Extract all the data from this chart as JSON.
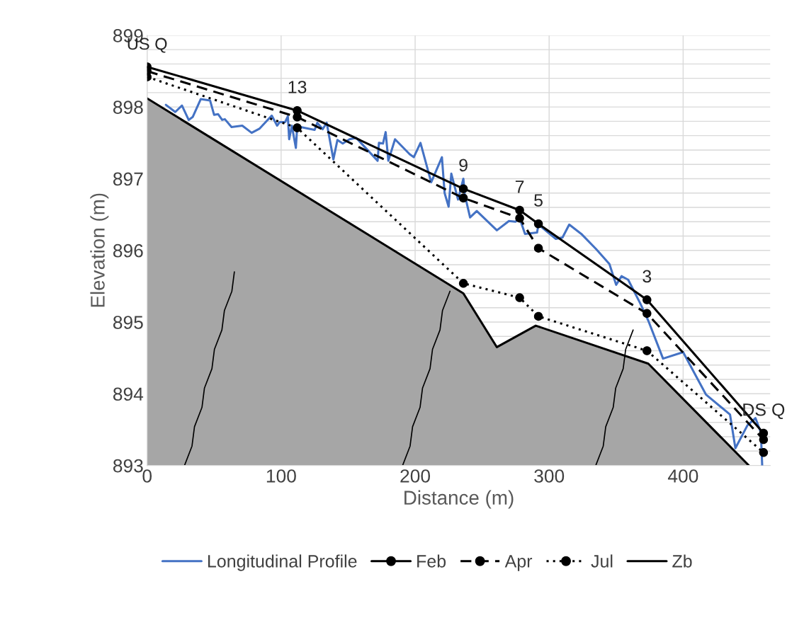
{
  "chart_data": {
    "type": "line",
    "xlabel": "Distance (m)",
    "ylabel": "Elevation (m)",
    "xlim": [
      0,
      465
    ],
    "xticks": [
      0,
      100,
      200,
      300,
      400
    ],
    "ylim": [
      893,
      899
    ],
    "yticks": [
      893,
      {
        "value": 893.2,
        "label": null
      },
      {
        "value": 893.4,
        "label": null
      },
      {
        "value": 893.6,
        "label": null
      },
      {
        "value": 893.8,
        "label": null
      },
      894,
      {
        "value": 894.2,
        "label": null
      },
      {
        "value": 894.4,
        "label": null
      },
      {
        "value": 894.6,
        "label": null
      },
      {
        "value": 894.8,
        "label": null
      },
      895,
      {
        "value": 895.2,
        "label": null
      },
      {
        "value": 895.4,
        "label": null
      },
      {
        "value": 895.6,
        "label": null
      },
      {
        "value": 895.8,
        "label": null
      },
      896,
      {
        "value": 896.2,
        "label": null
      },
      {
        "value": 896.4,
        "label": null
      },
      {
        "value": 896.6,
        "label": null
      },
      {
        "value": 896.8,
        "label": null
      },
      897,
      {
        "value": 897.2,
        "label": null
      },
      {
        "value": 897.4,
        "label": null
      },
      {
        "value": 897.6,
        "label": null
      },
      {
        "value": 897.8,
        "label": null
      },
      898,
      {
        "value": 898.2,
        "label": null
      },
      {
        "value": 898.4,
        "label": null
      },
      {
        "value": 898.6,
        "label": null
      },
      {
        "value": 898.8,
        "label": null
      },
      899
    ],
    "grid": true,
    "legend": "bottom",
    "series": [
      {
        "name": "Longitudinal Profile",
        "color": "#4472c4",
        "marker": "none",
        "line_style": "solid",
        "x": [
          14,
          21,
          26,
          31,
          34,
          40,
          47,
          50,
          53,
          56,
          58,
          63,
          71,
          78,
          84,
          93,
          97,
          99,
          103,
          105,
          106,
          108,
          111,
          112,
          125,
          127,
          131,
          134,
          139,
          142,
          146,
          151,
          156,
          162,
          172,
          173,
          176,
          178,
          180,
          185,
          196,
          199,
          204,
          212,
          220,
          222,
          225,
          227,
          232,
          236,
          237,
          241,
          246,
          261,
          270,
          275,
          278,
          282,
          291,
          292,
          305,
          310,
          315,
          324,
          335,
          345,
          350,
          354,
          359,
          368,
          374,
          385,
          400,
          417,
          435,
          439,
          448,
          454,
          458,
          459
        ],
        "values": [
          898.03,
          897.93,
          898.02,
          897.82,
          897.86,
          898.11,
          898.09,
          897.89,
          897.9,
          897.82,
          897.83,
          897.72,
          897.74,
          897.64,
          897.7,
          897.88,
          897.74,
          897.79,
          897.79,
          897.87,
          897.55,
          897.74,
          897.43,
          897.73,
          897.68,
          897.78,
          897.69,
          897.78,
          897.27,
          897.54,
          897.49,
          897.55,
          897.57,
          897.45,
          897.25,
          897.5,
          897.49,
          897.65,
          897.25,
          897.55,
          897.34,
          897.3,
          897.5,
          896.95,
          897.3,
          896.8,
          896.61,
          897.07,
          896.71,
          897.0,
          896.78,
          896.46,
          896.55,
          896.28,
          896.41,
          896.4,
          896.45,
          896.23,
          896.25,
          896.36,
          896.16,
          896.18,
          896.36,
          896.23,
          896.02,
          895.81,
          895.52,
          895.64,
          895.59,
          895.26,
          895.02,
          894.49,
          894.58,
          893.99,
          893.71,
          893.24,
          893.56,
          893.66,
          893.46,
          893.0
        ]
      },
      {
        "name": "Feb",
        "color": "#000000",
        "marker": "circle",
        "line_style": "solid",
        "x": [
          0,
          112,
          236,
          278,
          292,
          373,
          460
        ],
        "values": [
          898.56,
          897.95,
          896.86,
          896.56,
          896.37,
          895.31,
          893.45
        ]
      },
      {
        "name": "Apr",
        "color": "#000000",
        "marker": "circle",
        "line_style": "dashed",
        "x": [
          0,
          112,
          236,
          278,
          292,
          373,
          460
        ],
        "values": [
          898.5,
          897.86,
          896.73,
          896.45,
          896.03,
          895.12,
          893.36
        ]
      },
      {
        "name": "Jul",
        "color": "#000000",
        "marker": "circle",
        "line_style": "dotted",
        "x": [
          0,
          112,
          236,
          278,
          292,
          373,
          460
        ],
        "values": [
          898.42,
          897.71,
          895.54,
          895.34,
          895.08,
          894.6,
          893.18
        ]
      },
      {
        "name": "Zb",
        "type": "area",
        "color": "#000000",
        "marker": "none",
        "line_style": "solid",
        "x": [
          0,
          236,
          261,
          290,
          374,
          449
        ],
        "values": [
          898.12,
          895.4,
          894.65,
          894.95,
          894.42,
          893.0
        ]
      }
    ],
    "annotations": [
      {
        "text": "US Q",
        "x": 0,
        "y": 898.56
      },
      {
        "text": "13",
        "x": 112,
        "y": 897.95
      },
      {
        "text": "9",
        "x": 236,
        "y": 896.86
      },
      {
        "text": "7",
        "x": 278,
        "y": 896.56
      },
      {
        "text": "5",
        "x": 292,
        "y": 896.37
      },
      {
        "text": "3",
        "x": 373,
        "y": 895.31
      },
      {
        "text": "DS Q",
        "x": 460,
        "y": 893.45
      }
    ]
  }
}
